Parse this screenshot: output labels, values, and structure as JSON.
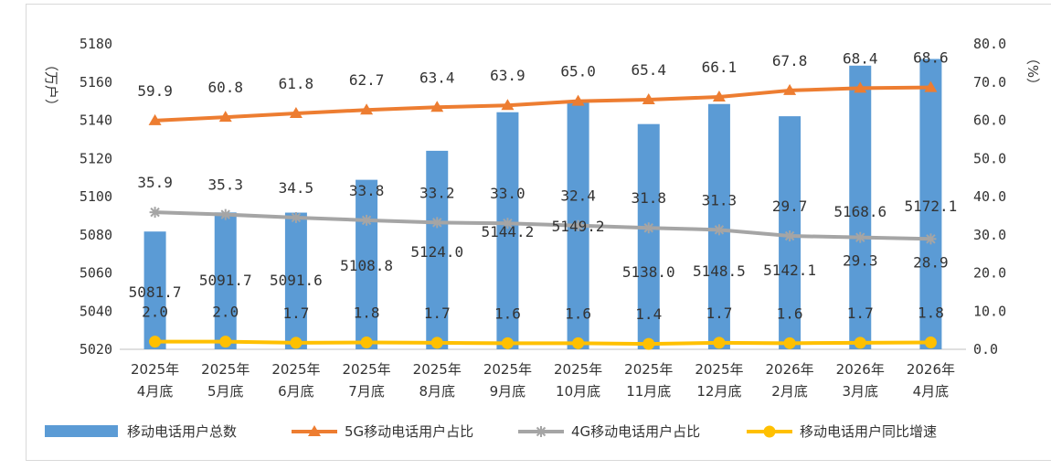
{
  "chart_data": {
    "type": "bar",
    "categories": [
      [
        "2025年",
        "4月底"
      ],
      [
        "2025年",
        "5月底"
      ],
      [
        "2025年",
        "6月底"
      ],
      [
        "2025年",
        "7月底"
      ],
      [
        "2025年",
        "8月底"
      ],
      [
        "2025年",
        "9月底"
      ],
      [
        "2025年",
        "10月底"
      ],
      [
        "2025年",
        "11月底"
      ],
      [
        "2025年",
        "12月底"
      ],
      [
        "2026年",
        "2月底"
      ],
      [
        "2026年",
        "3月底"
      ],
      [
        "2026年",
        "4月底"
      ]
    ],
    "y_left": {
      "unit": "（万户）",
      "ylim": [
        5020,
        5180
      ],
      "ticks": [
        5020,
        5040,
        5060,
        5080,
        5100,
        5120,
        5140,
        5160,
        5180
      ]
    },
    "y_right": {
      "unit": "（%）",
      "ylim": [
        0,
        80
      ],
      "ticks": [
        "0.0",
        "10.0",
        "20.0",
        "30.0",
        "40.0",
        "50.0",
        "60.0",
        "70.0",
        "80.0"
      ]
    },
    "series": [
      {
        "name": "移动电话用户总数",
        "kind": "bar",
        "axis": "left",
        "color": "#5b9bd5",
        "values": [
          5081.7,
          5091.7,
          5091.6,
          5108.8,
          5124.0,
          5144.2,
          5149.2,
          5138.0,
          5148.5,
          5142.1,
          5168.6,
          5172.1
        ],
        "labels": [
          "5081.7",
          "5091.7",
          "5091.6",
          "5108.8",
          "5124.0",
          "5144.2",
          "5149.2",
          "5138.0",
          "5148.5",
          "5142.1",
          "5168.6",
          "5172.1"
        ]
      },
      {
        "name": "5G移动电话用户占比",
        "kind": "line",
        "axis": "right",
        "color": "#ed7d31",
        "marker": "triangle",
        "values": [
          59.9,
          60.8,
          61.8,
          62.7,
          63.4,
          63.9,
          65.0,
          65.4,
          66.1,
          67.8,
          68.4,
          68.6
        ],
        "labels": [
          "59.9",
          "60.8",
          "61.8",
          "62.7",
          "63.4",
          "63.9",
          "65.0",
          "65.4",
          "66.1",
          "67.8",
          "68.4",
          "68.6"
        ]
      },
      {
        "name": "4G移动电话用户占比",
        "kind": "line",
        "axis": "right",
        "color": "#a5a5a5",
        "marker": "star",
        "values": [
          35.9,
          35.3,
          34.5,
          33.8,
          33.2,
          33.0,
          32.4,
          31.8,
          31.3,
          29.7,
          29.3,
          28.9
        ],
        "labels": [
          "35.9",
          "35.3",
          "34.5",
          "33.8",
          "33.2",
          "33.0",
          "32.4",
          "31.8",
          "31.3",
          "29.7",
          "29.3",
          "28.9"
        ]
      },
      {
        "name": "移动电话用户同比增速",
        "kind": "line",
        "axis": "right",
        "color": "#ffc000",
        "marker": "circle",
        "values": [
          2.0,
          2.0,
          1.7,
          1.8,
          1.7,
          1.6,
          1.6,
          1.4,
          1.7,
          1.6,
          1.7,
          1.8
        ],
        "labels": [
          "2.0",
          "2.0",
          "1.7",
          "1.8",
          "1.7",
          "1.6",
          "1.6",
          "1.4",
          "1.7",
          "1.6",
          "1.7",
          "1.8"
        ]
      }
    ],
    "legend_position": "bottom",
    "grid": false
  }
}
